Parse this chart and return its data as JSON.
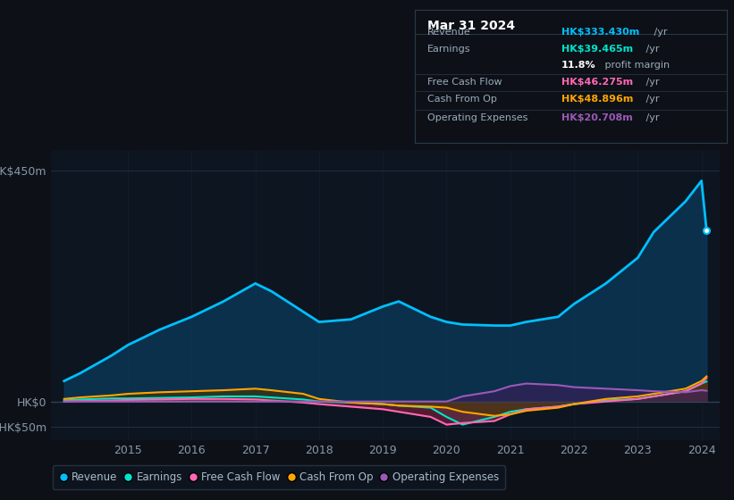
{
  "bg_color": "#0d1117",
  "plot_bg_color": "#0d1520",
  "grid_color": "#1e2d45",
  "years": [
    2014,
    2014.25,
    2014.75,
    2015,
    2015.5,
    2016,
    2016.5,
    2017,
    2017.25,
    2017.75,
    2018,
    2018.5,
    2019,
    2019.25,
    2019.75,
    2020,
    2020.25,
    2020.75,
    2021,
    2021.25,
    2021.75,
    2022,
    2022.5,
    2023,
    2023.25,
    2023.75,
    2024,
    2024.08
  ],
  "revenue": [
    40,
    55,
    90,
    110,
    140,
    165,
    195,
    230,
    215,
    175,
    155,
    160,
    185,
    195,
    165,
    155,
    150,
    148,
    148,
    155,
    165,
    190,
    230,
    280,
    330,
    390,
    430,
    333
  ],
  "earnings": [
    2,
    4,
    6,
    6,
    7,
    8,
    10,
    10,
    8,
    4,
    0,
    -2,
    -5,
    -8,
    -12,
    -30,
    -45,
    -30,
    -20,
    -15,
    -10,
    -5,
    2,
    5,
    10,
    20,
    35,
    39
  ],
  "free_cash_flow": [
    0,
    1,
    2,
    3,
    4,
    5,
    5,
    4,
    2,
    -2,
    -5,
    -10,
    -15,
    -20,
    -30,
    -45,
    -42,
    -38,
    -25,
    -15,
    -10,
    -5,
    0,
    5,
    10,
    20,
    35,
    46
  ],
  "cash_from_op": [
    5,
    8,
    12,
    15,
    18,
    20,
    22,
    25,
    22,
    15,
    5,
    -2,
    -5,
    -8,
    -10,
    -12,
    -20,
    -28,
    -25,
    -18,
    -12,
    -5,
    5,
    10,
    15,
    25,
    40,
    49
  ],
  "operating_expenses": [
    0,
    0,
    0,
    0,
    0,
    0,
    0,
    0,
    0,
    0,
    0,
    0,
    0,
    0,
    0,
    0,
    10,
    20,
    30,
    35,
    32,
    28,
    25,
    22,
    20,
    18,
    22,
    21
  ],
  "revenue_color": "#00bfff",
  "earnings_color": "#00e5cc",
  "free_cash_flow_color": "#ff69b4",
  "cash_from_op_color": "#ffa500",
  "operating_expenses_color": "#9b59b6",
  "revenue_fill": "#0a3a5c",
  "earnings_fill": "#1a5c50",
  "free_cash_flow_fill": "#7b1f3a",
  "cash_from_op_fill": "#4a3800",
  "operating_expenses_fill": "#3d1f5c",
  "ylim_min": -75,
  "ylim_max": 490,
  "yticks": [
    -50,
    0,
    450
  ],
  "ytick_labels": [
    "-HK$50m",
    "HK$0",
    "HK$450m"
  ],
  "xticks": [
    2015,
    2016,
    2017,
    2018,
    2019,
    2020,
    2021,
    2022,
    2023,
    2024
  ],
  "tooltip_title": "Mar 31 2024",
  "tooltip_rows": [
    {
      "label": "Revenue",
      "value": "HK$333.430m",
      "color": "#00bfff",
      "extra": " /yr",
      "separator_before": false
    },
    {
      "label": "Earnings",
      "value": "HK$39.465m",
      "color": "#00e5cc",
      "extra": " /yr",
      "separator_before": false
    },
    {
      "label": "",
      "value": "11.8%",
      "color": "#ffffff",
      "extra": " profit margin",
      "separator_before": false
    },
    {
      "label": "Free Cash Flow",
      "value": "HK$46.275m",
      "color": "#ff69b4",
      "extra": " /yr",
      "separator_before": true
    },
    {
      "label": "Cash From Op",
      "value": "HK$48.896m",
      "color": "#ffa500",
      "extra": " /yr",
      "separator_before": true
    },
    {
      "label": "Operating Expenses",
      "value": "HK$20.708m",
      "color": "#9b59b6",
      "extra": " /yr",
      "separator_before": true
    }
  ],
  "legend_items": [
    {
      "label": "Revenue",
      "color": "#00bfff"
    },
    {
      "label": "Earnings",
      "color": "#00e5cc"
    },
    {
      "label": "Free Cash Flow",
      "color": "#ff69b4"
    },
    {
      "label": "Cash From Op",
      "color": "#ffa500"
    },
    {
      "label": "Operating Expenses",
      "color": "#9b59b6"
    }
  ]
}
